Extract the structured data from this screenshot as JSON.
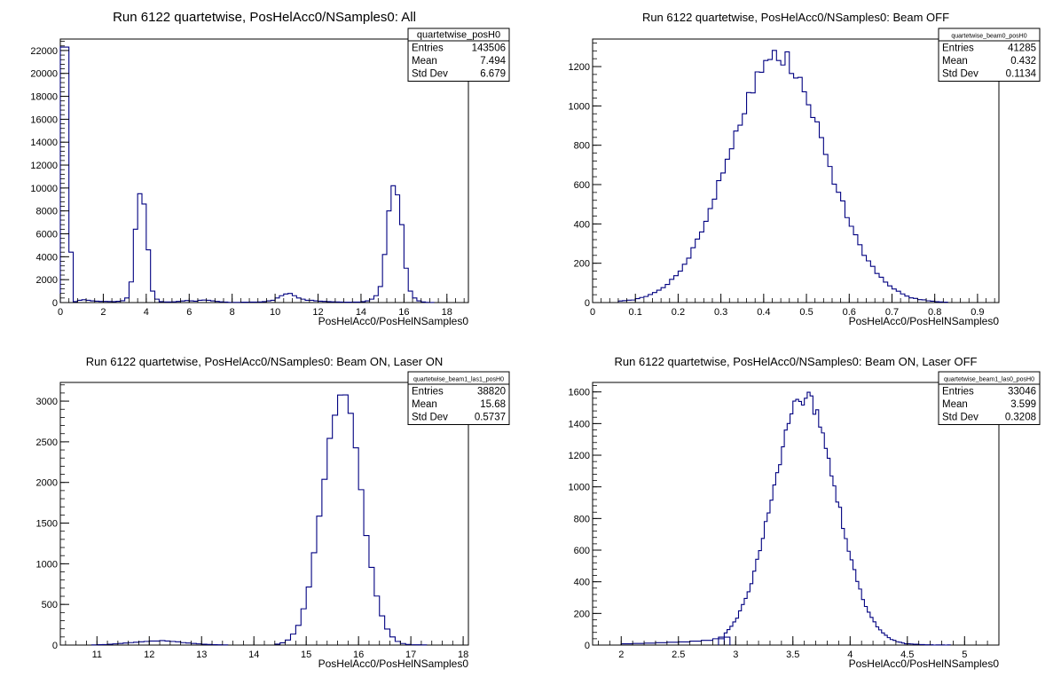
{
  "chart_data": [
    {
      "type": "bar",
      "title": "Run 6122 quartetwise, PosHelAcc0/NSamples0: All",
      "xlabel": "PosHelAcc0/PosHelNSamples0",
      "ylabel": "",
      "xlim": [
        0,
        19
      ],
      "ylim": [
        0,
        23000
      ],
      "xticks": [
        0,
        2,
        4,
        6,
        8,
        10,
        12,
        14,
        16,
        18
      ],
      "yticks": [
        0,
        2000,
        4000,
        6000,
        8000,
        10000,
        12000,
        14000,
        16000,
        18000,
        20000,
        22000
      ],
      "xtick_labels": [
        "0",
        "2",
        "4",
        "6",
        "8",
        "10",
        "12",
        "14",
        "16",
        "18"
      ],
      "ytick_labels": [
        "0",
        "2000",
        "4000",
        "6000",
        "8000",
        "10000",
        "12000",
        "14000",
        "16000",
        "18000",
        "20000",
        "22000"
      ],
      "bin_width": 0.2,
      "bins": [
        [
          0.0,
          22300
        ],
        [
          0.2,
          22300
        ],
        [
          0.4,
          4400
        ],
        [
          0.6,
          80
        ],
        [
          0.8,
          200
        ],
        [
          1.0,
          250
        ],
        [
          1.2,
          200
        ],
        [
          1.4,
          150
        ],
        [
          1.6,
          120
        ],
        [
          1.8,
          100
        ],
        [
          2.0,
          100
        ],
        [
          2.2,
          90
        ],
        [
          2.4,
          80
        ],
        [
          2.6,
          110
        ],
        [
          2.8,
          160
        ],
        [
          3.0,
          400
        ],
        [
          3.2,
          1800
        ],
        [
          3.4,
          6400
        ],
        [
          3.6,
          9500
        ],
        [
          3.8,
          8600
        ],
        [
          4.0,
          4600
        ],
        [
          4.2,
          1000
        ],
        [
          4.4,
          300
        ],
        [
          4.6,
          80
        ],
        [
          4.8,
          50
        ],
        [
          5.0,
          50
        ],
        [
          5.2,
          60
        ],
        [
          5.4,
          100
        ],
        [
          5.6,
          140
        ],
        [
          5.8,
          180
        ],
        [
          6.0,
          150
        ],
        [
          6.2,
          120
        ],
        [
          6.4,
          200
        ],
        [
          6.6,
          220
        ],
        [
          6.8,
          200
        ],
        [
          7.0,
          150
        ],
        [
          7.2,
          100
        ],
        [
          7.4,
          60
        ],
        [
          7.6,
          40
        ],
        [
          7.8,
          20
        ],
        [
          8.0,
          20
        ],
        [
          8.2,
          20
        ],
        [
          8.4,
          30
        ],
        [
          8.6,
          30
        ],
        [
          8.8,
          40
        ],
        [
          9.0,
          40
        ],
        [
          9.2,
          50
        ],
        [
          9.4,
          80
        ],
        [
          9.6,
          150
        ],
        [
          9.8,
          200
        ],
        [
          10.0,
          400
        ],
        [
          10.2,
          600
        ],
        [
          10.4,
          750
        ],
        [
          10.6,
          800
        ],
        [
          10.8,
          600
        ],
        [
          11.0,
          400
        ],
        [
          11.2,
          300
        ],
        [
          11.4,
          200
        ],
        [
          11.6,
          200
        ],
        [
          11.8,
          150
        ],
        [
          12.0,
          120
        ],
        [
          12.2,
          100
        ],
        [
          12.4,
          80
        ],
        [
          12.6,
          60
        ],
        [
          12.8,
          50
        ],
        [
          13.0,
          40
        ],
        [
          13.2,
          30
        ],
        [
          13.4,
          30
        ],
        [
          13.6,
          40
        ],
        [
          13.8,
          40
        ],
        [
          14.0,
          80
        ],
        [
          14.2,
          150
        ],
        [
          14.4,
          300
        ],
        [
          14.6,
          600
        ],
        [
          14.8,
          1400
        ],
        [
          15.0,
          4200
        ],
        [
          15.2,
          8000
        ],
        [
          15.4,
          10200
        ],
        [
          15.6,
          9400
        ],
        [
          15.8,
          6800
        ],
        [
          16.0,
          3000
        ],
        [
          16.2,
          1000
        ],
        [
          16.4,
          400
        ],
        [
          16.6,
          150
        ],
        [
          16.8,
          50
        ],
        [
          17.0,
          20
        ],
        [
          17.2,
          10
        ]
      ],
      "stats": {
        "name": "quartetwise_posH0",
        "rows": [
          [
            "Entries",
            "143506"
          ],
          [
            "Mean",
            "7.494"
          ],
          [
            "Std Dev",
            "6.679"
          ]
        ]
      }
    },
    {
      "type": "bar",
      "title": "Run 6122 quartetwise, PosHelAcc0/NSamples0: Beam OFF",
      "xlabel": "PosHelAcc0/PosHelNSamples0",
      "ylabel": "",
      "xlim": [
        0,
        0.95
      ],
      "ylim": [
        0,
        1340
      ],
      "xticks": [
        0,
        0.1,
        0.2,
        0.3,
        0.4,
        0.5,
        0.6,
        0.7,
        0.8,
        0.9
      ],
      "yticks": [
        0,
        200,
        400,
        600,
        800,
        1000,
        1200
      ],
      "xtick_labels": [
        "0",
        "0.1",
        "0.2",
        "0.3",
        "0.4",
        "0.5",
        "0.6",
        "0.7",
        "0.8",
        "0.9"
      ],
      "ytick_labels": [
        "0",
        "200",
        "400",
        "600",
        "800",
        "1000",
        "1200"
      ],
      "gaussian": {
        "mean": 0.432,
        "sigma": 0.113,
        "peak": 1250,
        "step": 0.01,
        "from": 0.06,
        "to": 0.82,
        "seed": 7,
        "noise": 0.045
      }
    },
    {
      "type": "bar",
      "title": "Run 6122 quartetwise, PosHelAcc0/NSamples0: Beam ON, Laser ON",
      "xlabel": "PosHelAcc0/PosHelNSamples0",
      "ylabel": "",
      "xlim": [
        10.3,
        18.1
      ],
      "ylim": [
        0,
        3230
      ],
      "xticks": [
        11,
        12,
        13,
        14,
        15,
        16,
        17,
        18
      ],
      "yticks": [
        0,
        500,
        1000,
        1500,
        2000,
        2500,
        3000
      ],
      "xtick_labels": [
        "11",
        "12",
        "13",
        "14",
        "15",
        "16",
        "17",
        "18"
      ],
      "ytick_labels": [
        "0",
        "500",
        "1000",
        "1500",
        "2000",
        "2500",
        "3000"
      ],
      "gaussian": {
        "mean": 15.68,
        "sigma": 0.37,
        "peak": 3080,
        "step": 0.1,
        "from": 14.4,
        "to": 17.2,
        "seed": 13,
        "noise": 0.03
      },
      "extra_bins": [
        [
          10.9,
          2
        ],
        [
          11.0,
          5
        ],
        [
          11.1,
          6
        ],
        [
          11.2,
          10
        ],
        [
          11.3,
          15
        ],
        [
          11.4,
          20
        ],
        [
          11.5,
          25
        ],
        [
          11.6,
          30
        ],
        [
          11.7,
          35
        ],
        [
          11.8,
          40
        ],
        [
          11.9,
          45
        ],
        [
          12.0,
          50
        ],
        [
          12.1,
          50
        ],
        [
          12.2,
          55
        ],
        [
          12.3,
          50
        ],
        [
          12.4,
          45
        ],
        [
          12.5,
          40
        ],
        [
          12.6,
          30
        ],
        [
          12.7,
          25
        ],
        [
          12.8,
          20
        ],
        [
          12.9,
          15
        ],
        [
          13.0,
          10
        ],
        [
          13.1,
          8
        ],
        [
          13.2,
          5
        ],
        [
          13.3,
          3
        ],
        [
          13.4,
          2
        ]
      ]
    },
    {
      "type": "bar",
      "title": "Run 6122 quartetwise, PosHelAcc0/NSamples0: Beam ON, Laser OFF",
      "xlabel": "PosHelAcc0/PosHelNSamples0",
      "ylabel": "",
      "xlim": [
        1.75,
        5.3
      ],
      "ylim": [
        0,
        1660
      ],
      "xticks": [
        2,
        2.5,
        3,
        3.5,
        4,
        4.5,
        5
      ],
      "yticks": [
        0,
        200,
        400,
        600,
        800,
        1000,
        1200,
        1400,
        1600
      ],
      "xtick_labels": [
        "2",
        "2.5",
        "3",
        "3.5",
        "4",
        "4.5",
        "5"
      ],
      "ytick_labels": [
        "0",
        "200",
        "400",
        "600",
        "800",
        "1000",
        "1200",
        "1400",
        "1600"
      ],
      "gaussian": {
        "mean": 3.6,
        "sigma": 0.28,
        "peak": 1570,
        "step": 0.025,
        "from": 2.9,
        "to": 4.85,
        "seed": 29,
        "noise": 0.035
      },
      "extra_bins": [
        [
          2.0,
          8
        ],
        [
          2.1,
          10
        ],
        [
          2.2,
          12
        ],
        [
          2.3,
          15
        ],
        [
          2.4,
          18
        ],
        [
          2.5,
          20
        ],
        [
          2.6,
          25
        ],
        [
          2.7,
          30
        ],
        [
          2.8,
          40
        ],
        [
          2.85,
          50
        ]
      ]
    }
  ],
  "stats_boxes": [
    {
      "name": "quartetwise_posH0",
      "rows": [
        [
          "Entries",
          "143506"
        ],
        [
          "Mean",
          "7.494"
        ],
        [
          "Std Dev",
          "6.679"
        ]
      ]
    },
    {
      "name": "quartetwise_beam0_posH0",
      "rows": [
        [
          "Entries",
          "41285"
        ],
        [
          "Mean",
          "0.432"
        ],
        [
          "Std Dev",
          "0.1134"
        ]
      ]
    },
    {
      "name": "quartetwise_beam1_las1_posH0",
      "rows": [
        [
          "Entries",
          "38820"
        ],
        [
          "Mean",
          "15.68"
        ],
        [
          "Std Dev",
          "0.5737"
        ]
      ]
    },
    {
      "name": "quartetwise_beam1_las0_posH0",
      "rows": [
        [
          "Entries",
          "33046"
        ],
        [
          "Mean",
          "3.599"
        ],
        [
          "Std Dev",
          "0.3208"
        ]
      ]
    }
  ]
}
